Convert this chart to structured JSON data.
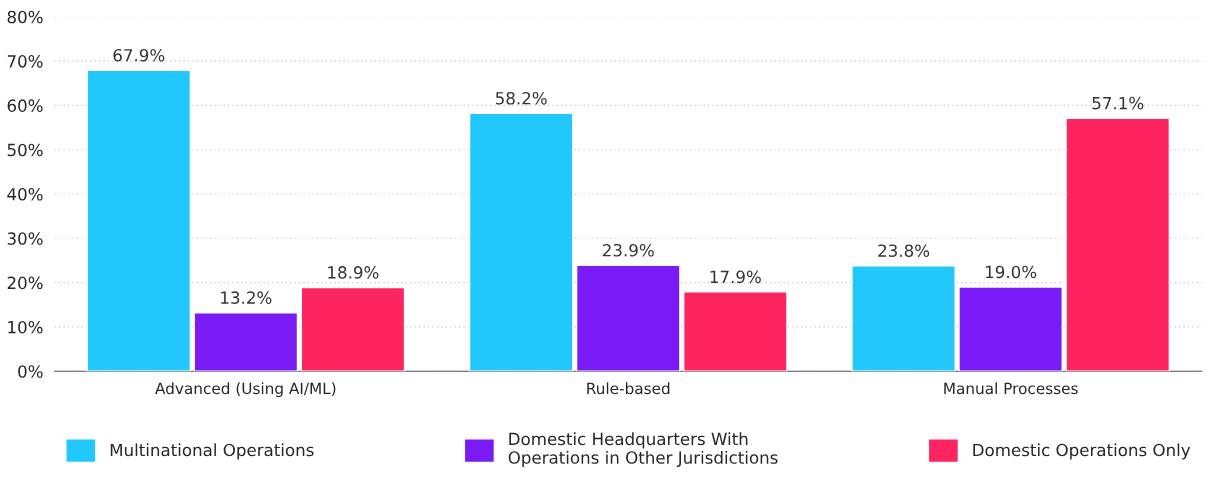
{
  "chart_data": {
    "type": "bar",
    "categories": [
      "Advanced (Using AI/ML)",
      "Rule-based",
      "Manual Processes"
    ],
    "series": [
      {
        "name": "Multinational Operations",
        "color": "#22c8fb",
        "values": [
          67.9,
          58.2,
          23.8
        ],
        "value_labels": [
          "67.9%",
          "58.2%",
          "23.8%"
        ]
      },
      {
        "name": "Domestic Headquarters With\nOperations in Other Jurisdictions",
        "color": "#7a1af5",
        "values": [
          13.2,
          23.9,
          19.0
        ],
        "value_labels": [
          "13.2%",
          "23.9%",
          "19.0%"
        ]
      },
      {
        "name": "Domestic Operations Only",
        "color": "#fe2460",
        "values": [
          18.9,
          17.9,
          57.1
        ],
        "value_labels": [
          "18.9%",
          "17.9%",
          "57.1%"
        ]
      }
    ],
    "ylim": [
      0,
      80
    ],
    "yticks": [
      {
        "value": 0,
        "label": "0%"
      },
      {
        "value": 10,
        "label": "10%"
      },
      {
        "value": 20,
        "label": "20%"
      },
      {
        "value": 30,
        "label": "30%"
      },
      {
        "value": 40,
        "label": "40%"
      },
      {
        "value": 50,
        "label": "50%"
      },
      {
        "value": 60,
        "label": "60%"
      },
      {
        "value": 70,
        "label": "70%"
      },
      {
        "value": 80,
        "label": "80%"
      }
    ],
    "grid": "y",
    "legend": "bottom"
  }
}
